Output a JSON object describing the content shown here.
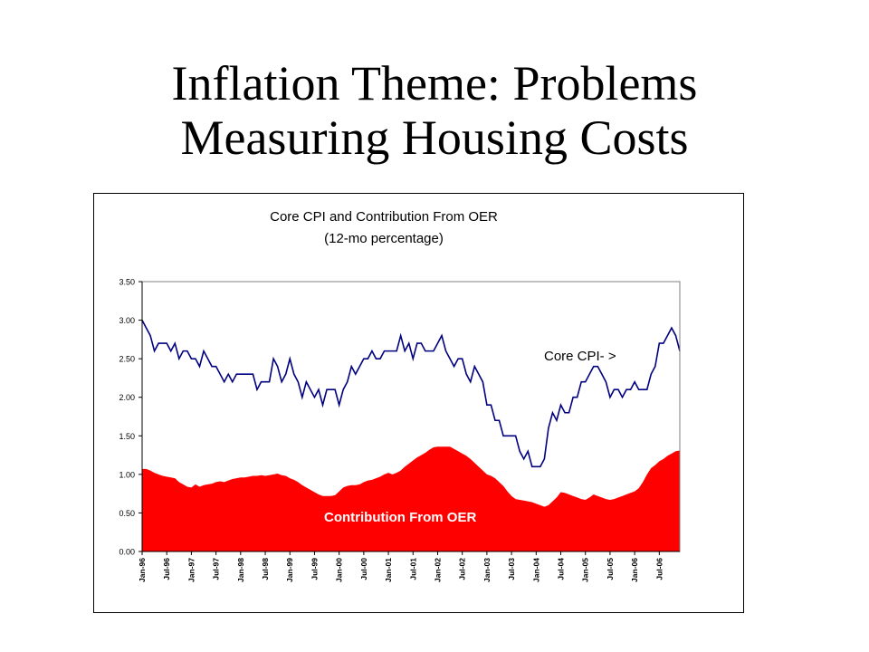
{
  "slide": {
    "title_line1": "Inflation Theme: Problems",
    "title_line2": "Measuring Housing Costs"
  },
  "colors": {
    "core_cpi_line": "#000080",
    "oer_area": "#ff0000",
    "grid": "#000000",
    "background": "#ffffff"
  },
  "chart_data": {
    "type": "area",
    "title": "Core CPI and Contribution From OER",
    "subtitle": "(12-mo percentage)",
    "xlabel": "",
    "ylabel": "",
    "ylim": [
      0,
      3.5
    ],
    "yticks": [
      "0.00",
      "0.50",
      "1.00",
      "1.50",
      "2.00",
      "2.50",
      "3.00",
      "3.50"
    ],
    "grid": false,
    "legend": "none",
    "x_start": "Jan-96",
    "x_end": "Dec-06",
    "xtick_labels": [
      "Jan-96",
      "Jul-96",
      "Jan-97",
      "Jul-97",
      "Jan-98",
      "Jul-98",
      "Jan-99",
      "Jul-99",
      "Jan-00",
      "Jul-00",
      "Jan-01",
      "Jul-01",
      "Jan-02",
      "Jul-02",
      "Jan-03",
      "Jul-03",
      "Jan-04",
      "Jul-04",
      "Jan-05",
      "Jul-05",
      "Jan-06",
      "Jul-06"
    ],
    "annotations": [
      {
        "text": "Core CPI- >",
        "series": "Core CPI",
        "at": "Jan-05",
        "value": 2.5
      },
      {
        "text": "Contribution From OER",
        "series": "Contribution From OER",
        "at": "Jul-00",
        "value": 0.45
      }
    ],
    "series": [
      {
        "name": "Core CPI",
        "style": "line",
        "values": [
          3.0,
          2.9,
          2.8,
          2.6,
          2.7,
          2.7,
          2.7,
          2.6,
          2.7,
          2.5,
          2.6,
          2.6,
          2.5,
          2.5,
          2.4,
          2.6,
          2.5,
          2.4,
          2.4,
          2.3,
          2.2,
          2.3,
          2.2,
          2.3,
          2.3,
          2.3,
          2.3,
          2.3,
          2.1,
          2.2,
          2.2,
          2.2,
          2.5,
          2.4,
          2.2,
          2.3,
          2.5,
          2.3,
          2.2,
          2.0,
          2.2,
          2.1,
          2.0,
          2.1,
          1.9,
          2.1,
          2.1,
          2.1,
          1.9,
          2.1,
          2.2,
          2.4,
          2.3,
          2.4,
          2.5,
          2.5,
          2.6,
          2.5,
          2.5,
          2.6,
          2.6,
          2.6,
          2.6,
          2.8,
          2.6,
          2.7,
          2.5,
          2.7,
          2.7,
          2.6,
          2.6,
          2.6,
          2.7,
          2.8,
          2.6,
          2.5,
          2.4,
          2.5,
          2.5,
          2.3,
          2.2,
          2.4,
          2.3,
          2.2,
          1.9,
          1.9,
          1.7,
          1.7,
          1.5,
          1.5,
          1.5,
          1.5,
          1.3,
          1.2,
          1.3,
          1.1,
          1.1,
          1.1,
          1.2,
          1.6,
          1.8,
          1.7,
          1.9,
          1.8,
          1.8,
          2.0,
          2.0,
          2.2,
          2.2,
          2.3,
          2.4,
          2.4,
          2.3,
          2.2,
          2.0,
          2.1,
          2.1,
          2.0,
          2.1,
          2.1,
          2.2,
          2.1,
          2.1,
          2.1,
          2.3,
          2.4,
          2.7,
          2.7,
          2.8,
          2.9,
          2.8,
          2.6
        ]
      },
      {
        "name": "Contribution From OER",
        "style": "area",
        "values": [
          1.07,
          1.07,
          1.05,
          1.02,
          1.0,
          0.98,
          0.97,
          0.96,
          0.95,
          0.9,
          0.87,
          0.84,
          0.83,
          0.87,
          0.84,
          0.86,
          0.87,
          0.88,
          0.9,
          0.91,
          0.9,
          0.92,
          0.94,
          0.95,
          0.96,
          0.96,
          0.97,
          0.98,
          0.98,
          0.99,
          0.98,
          0.99,
          1.0,
          1.01,
          0.99,
          0.98,
          0.95,
          0.93,
          0.9,
          0.86,
          0.83,
          0.8,
          0.77,
          0.74,
          0.72,
          0.72,
          0.72,
          0.73,
          0.78,
          0.83,
          0.85,
          0.86,
          0.86,
          0.87,
          0.9,
          0.92,
          0.93,
          0.95,
          0.97,
          1.0,
          1.02,
          1.0,
          1.02,
          1.05,
          1.1,
          1.14,
          1.18,
          1.22,
          1.25,
          1.28,
          1.32,
          1.35,
          1.36,
          1.36,
          1.36,
          1.36,
          1.33,
          1.3,
          1.27,
          1.24,
          1.2,
          1.15,
          1.1,
          1.05,
          1.0,
          0.98,
          0.95,
          0.9,
          0.85,
          0.78,
          0.72,
          0.68,
          0.67,
          0.66,
          0.65,
          0.64,
          0.62,
          0.6,
          0.58,
          0.6,
          0.65,
          0.7,
          0.77,
          0.76,
          0.74,
          0.72,
          0.7,
          0.68,
          0.67,
          0.7,
          0.74,
          0.72,
          0.7,
          0.68,
          0.67,
          0.68,
          0.7,
          0.72,
          0.74,
          0.76,
          0.78,
          0.82,
          0.9,
          1.0,
          1.08,
          1.12,
          1.17,
          1.2,
          1.24,
          1.27,
          1.3,
          1.31
        ]
      }
    ]
  }
}
